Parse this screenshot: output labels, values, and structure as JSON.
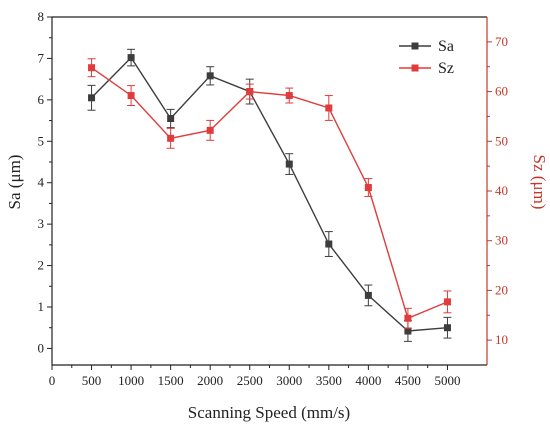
{
  "chart_data": {
    "type": "line",
    "xlabel": "Scanning Speed (mm/s)",
    "x": [
      500,
      1000,
      1500,
      2000,
      2500,
      3000,
      3500,
      4000,
      4500,
      5000
    ],
    "xlim": [
      0,
      5500
    ],
    "xticks": [
      0,
      500,
      1000,
      1500,
      2000,
      2500,
      3000,
      3500,
      4000,
      4500,
      5000
    ],
    "y_left": {
      "label": "Sa (μm)",
      "lim": [
        -0.4,
        8
      ],
      "ticks": [
        0,
        1,
        2,
        3,
        4,
        5,
        6,
        7,
        8
      ]
    },
    "y_right": {
      "label": "Sz (μm)",
      "lim": [
        5,
        75
      ],
      "ticks": [
        10,
        20,
        30,
        40,
        50,
        60,
        70
      ]
    },
    "series": [
      {
        "name": "Sa",
        "axis": "left",
        "color": "#3d3d3d",
        "marker": "square",
        "values": [
          6.05,
          7.02,
          5.55,
          6.58,
          6.2,
          4.45,
          2.52,
          1.28,
          0.42,
          0.5
        ],
        "errors": [
          0.3,
          0.2,
          0.22,
          0.22,
          0.3,
          0.25,
          0.3,
          0.25,
          0.25,
          0.25
        ]
      },
      {
        "name": "Sz",
        "axis": "right",
        "color": "#e03c3c",
        "marker": "square",
        "values": [
          64.8,
          59.2,
          50.6,
          52.2,
          60.0,
          59.2,
          56.7,
          40.7,
          14.4,
          17.7
        ],
        "errors": [
          1.8,
          2.0,
          2.0,
          2.0,
          1.5,
          1.5,
          2.5,
          1.8,
          2.0,
          2.2
        ]
      }
    ],
    "grid": false,
    "legend": "top-right"
  }
}
